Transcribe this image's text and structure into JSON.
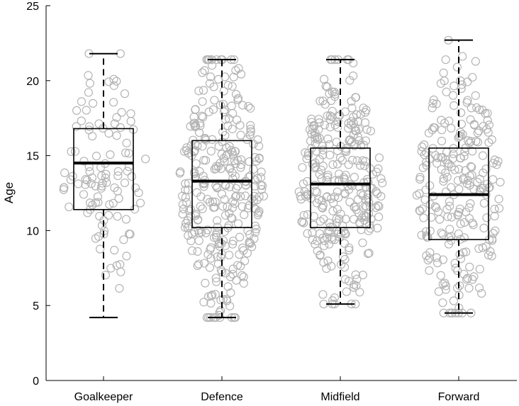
{
  "chart_data": {
    "type": "box",
    "ylabel": "Age",
    "ylim": [
      0,
      25
    ],
    "yticks": [
      0,
      5,
      10,
      15,
      20,
      25
    ],
    "categories": [
      "Goalkeeper",
      "Defence",
      "Midfield",
      "Forward"
    ],
    "boxes": [
      {
        "category": "Goalkeeper",
        "whisker_low": 4.2,
        "q1": 11.4,
        "median": 14.5,
        "q3": 16.8,
        "whisker_high": 21.8,
        "n_points": 110
      },
      {
        "category": "Defence",
        "whisker_low": 4.2,
        "q1": 10.2,
        "median": 13.3,
        "q3": 16.0,
        "whisker_high": 21.4,
        "n_points": 330
      },
      {
        "category": "Midfield",
        "whisker_low": 5.1,
        "q1": 10.2,
        "median": 13.1,
        "q3": 15.5,
        "whisker_high": 21.4,
        "n_points": 300
      },
      {
        "category": "Forward",
        "whisker_low": 4.5,
        "q1": 9.4,
        "median": 12.4,
        "q3": 15.5,
        "whisker_high": 22.7,
        "n_points": 250
      }
    ],
    "point_color": "#b4b4b4",
    "box_color": "#000000",
    "grid": false
  }
}
